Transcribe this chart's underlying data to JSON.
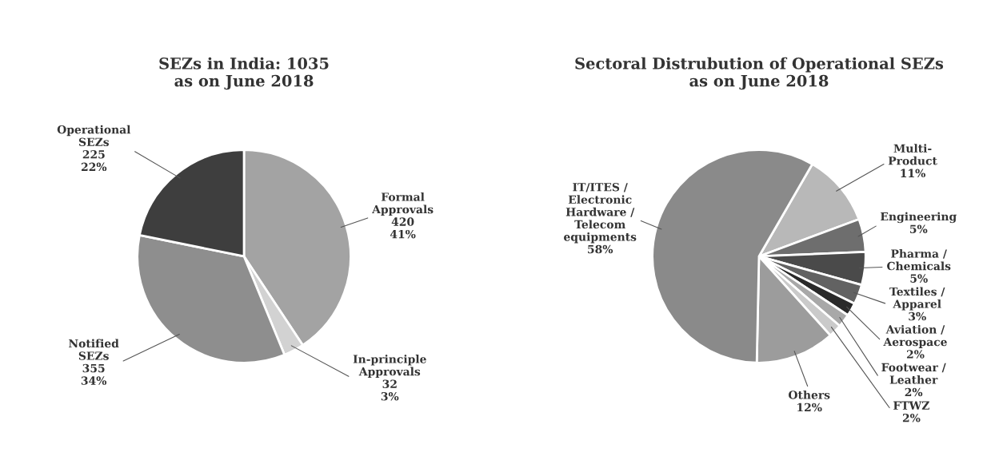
{
  "chart_data": [
    {
      "type": "pie",
      "title": "SEZs in India: 1035\nas on June 2018",
      "categories": [
        "Formal\nApprovals",
        "In-principle\nApprovals",
        "Notified\nSEZs",
        "Operational\nSEZs"
      ],
      "values": [
        420,
        32,
        355,
        225
      ],
      "value_labels": [
        "420\n41%",
        "32\n3%",
        "355\n34%",
        "225\n22%"
      ],
      "colors": [
        "#a3a3a3",
        "#d2d2d2",
        "#8e8e8e",
        "#3e3e3e"
      ]
    },
    {
      "type": "pie",
      "title": "Sectoral Distrubution of Operational SEZs\nas on June 2018",
      "categories": [
        "Multi-\nProduct",
        "Engineering",
        "Pharma /\nChemicals",
        "Textiles /\nApparel",
        "Aviation /\nAerospace",
        "Footwear /\nLeather",
        "FTWZ",
        "Others",
        "IT/ITES /\nElectronic\nHardware /\nTelecom\nequipments"
      ],
      "values": [
        11,
        5,
        5,
        3,
        2,
        2,
        2,
        12,
        58
      ],
      "value_labels": [
        "11%",
        "5%",
        "5%",
        "3%",
        "2%",
        "2%",
        "2%",
        "12%",
        "58%"
      ],
      "colors": [
        "#b8b8b8",
        "#6e6e6e",
        "#4a4a4a",
        "#626262",
        "#2a2a2a",
        "#a8a8a8",
        "#cacaca",
        "#9c9c9c",
        "#8a8a8a"
      ]
    }
  ]
}
